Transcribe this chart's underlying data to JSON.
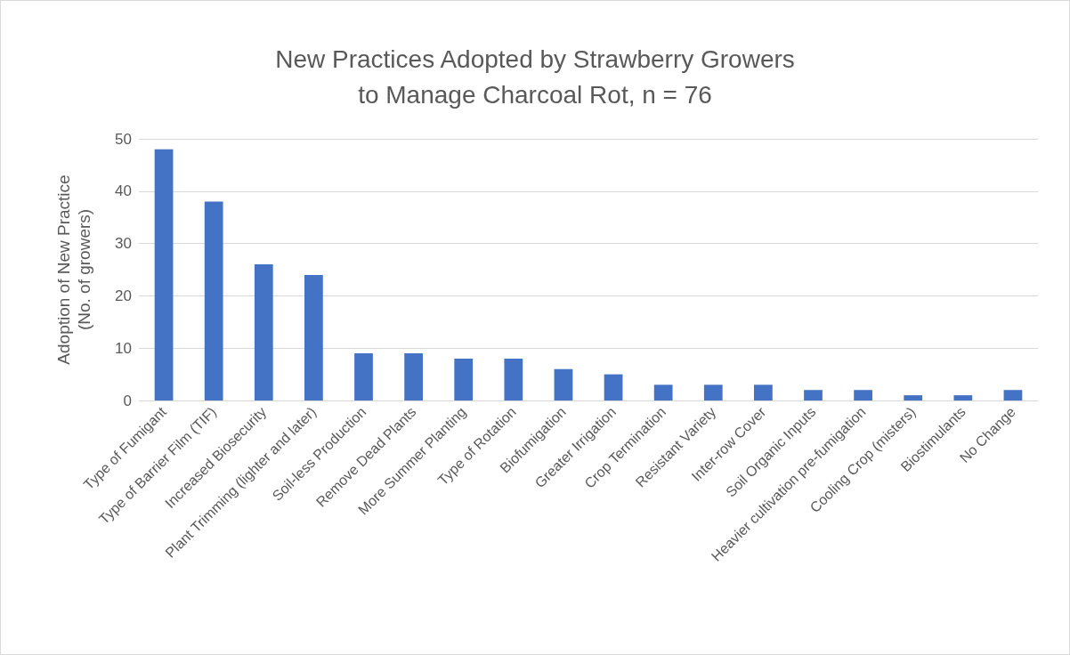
{
  "chart_data": {
    "type": "bar",
    "title": "New Practices Adopted by Strawberry Growers\nto Manage Charcoal Rot, n = 76",
    "ylabel": "Adoption of New Practice\n(No. of growers)",
    "categories": [
      "Type of Fumigant",
      "Type of Barrier Film (TIF)",
      "Increased Biosecurity",
      "Plant Trimming (lighter and later)",
      "Soil-less Production",
      "Remove Dead Plants",
      "More Summer Planting",
      "Type of Rotation",
      "Biofumigation",
      "Greater Irrigation",
      "Crop Termination",
      "Resistant Variety",
      "Inter-row Cover",
      "Soil Organic Inputs",
      "Heavier cultivation pre-fumigation",
      "Cooling Crop (misters)",
      "Biostimulants",
      "No Change"
    ],
    "values": [
      48,
      38,
      26,
      24,
      9,
      9,
      8,
      8,
      6,
      5,
      3,
      3,
      3,
      2,
      2,
      1,
      1,
      2
    ],
    "color": "#4472c4",
    "ylim": [
      0,
      50
    ],
    "yticks": [
      0,
      10,
      20,
      30,
      40,
      50
    ],
    "grid": "y"
  }
}
